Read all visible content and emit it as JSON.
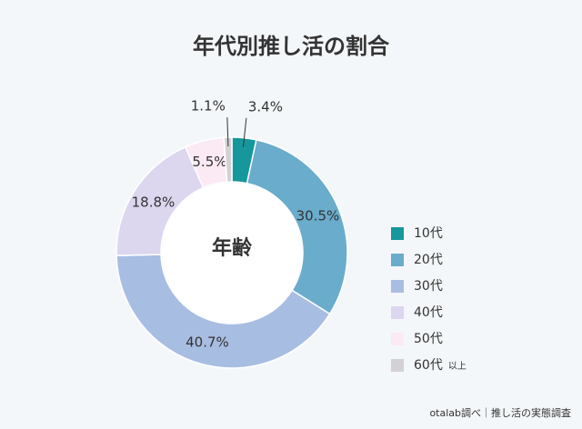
{
  "chart_data": {
    "type": "pie",
    "title": "年代別推し活の割合",
    "center_label": "年齢",
    "categories": [
      "10代",
      "20代",
      "30代",
      "40代",
      "50代",
      "60代"
    ],
    "legend_note": "以上",
    "values": [
      3.4,
      30.5,
      40.7,
      18.8,
      5.5,
      1.1
    ],
    "value_labels": [
      "3.4%",
      "30.5%",
      "40.7%",
      "18.8%",
      "5.5%",
      "1.1%"
    ],
    "colors": [
      "#16979c",
      "#6aaccb",
      "#a8bde2",
      "#dcd6ef",
      "#fbeaf3",
      "#d3d0d6"
    ],
    "source": "otalab調べ｜推し活の実態調査"
  }
}
